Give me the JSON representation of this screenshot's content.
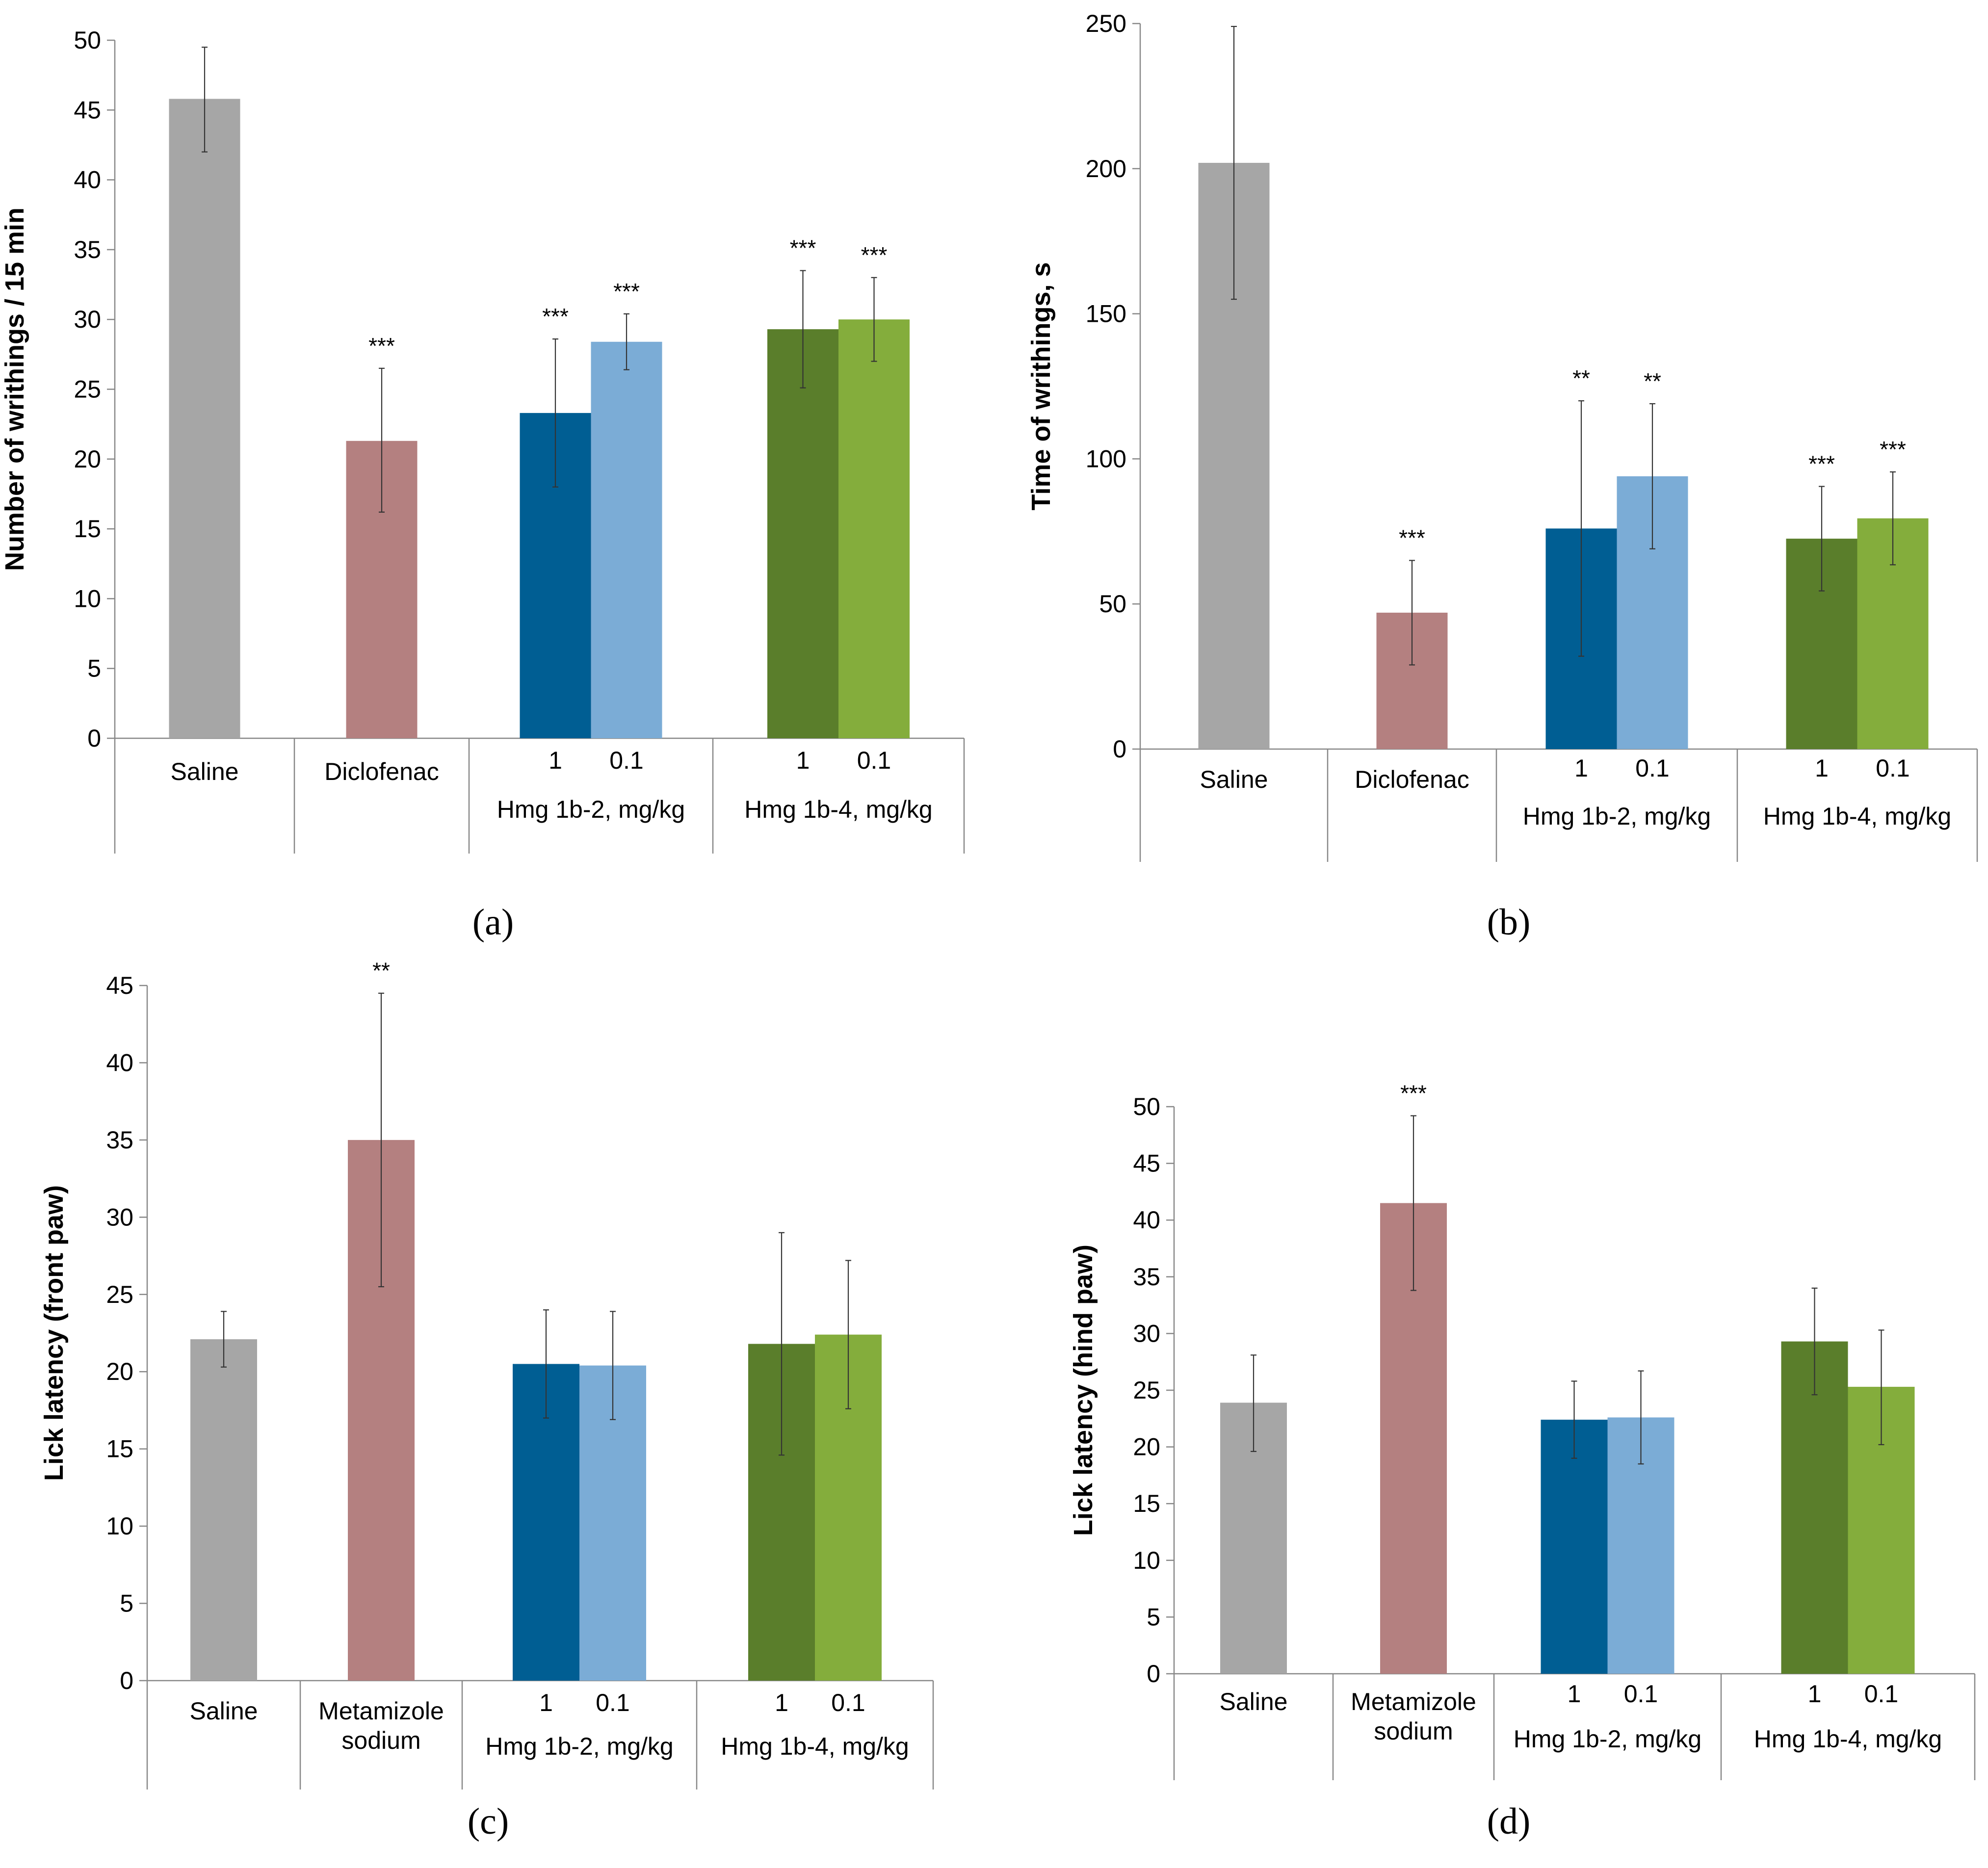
{
  "colors": {
    "saline": "#a6a6a6",
    "reference": "#b48080",
    "hmg2_1": "#005e93",
    "hmg2_01": "#7bacd6",
    "hmg4_1": "#5a7e2b",
    "hmg4_01": "#84ad3c"
  },
  "chart_data": [
    {
      "type": "bar",
      "panel": "(a)",
      "title": "",
      "ylabel": "Number of writhings / 15 min",
      "ylim": [
        0,
        50
      ],
      "yticks": [
        0,
        5,
        10,
        15,
        20,
        25,
        30,
        35,
        40,
        45,
        50
      ],
      "groups": [
        {
          "label": "Saline",
          "sublabel": ""
        },
        {
          "label": "Diclofenac",
          "sublabel": ""
        },
        {
          "label": "Hmg 1b-2,  mg/kg",
          "sublabel": ""
        },
        {
          "label": "Hmg 1b-4, mg/kg",
          "sublabel": ""
        }
      ],
      "bars": [
        {
          "group": 0,
          "dose": "",
          "value": 45.8,
          "err_low": 42.0,
          "err_high": 49.5,
          "sig": "",
          "color_key": "saline"
        },
        {
          "group": 1,
          "dose": "",
          "value": 21.3,
          "err_low": 16.2,
          "err_high": 26.5,
          "sig": "***",
          "color_key": "reference"
        },
        {
          "group": 2,
          "dose": "1",
          "value": 23.3,
          "err_low": 18.0,
          "err_high": 28.6,
          "sig": "***",
          "color_key": "hmg2_1"
        },
        {
          "group": 2,
          "dose": "0.1",
          "value": 28.4,
          "err_low": 26.4,
          "err_high": 30.4,
          "sig": "***",
          "color_key": "hmg2_01"
        },
        {
          "group": 3,
          "dose": "1",
          "value": 29.3,
          "err_low": 25.1,
          "err_high": 33.5,
          "sig": "***",
          "color_key": "hmg4_1"
        },
        {
          "group": 3,
          "dose": "0.1",
          "value": 30.0,
          "err_low": 27.0,
          "err_high": 33.0,
          "sig": "***",
          "color_key": "hmg4_01"
        }
      ]
    },
    {
      "type": "bar",
      "panel": "(b)",
      "title": "",
      "ylabel": "Time of writhings, s",
      "ylim": [
        0,
        250
      ],
      "yticks": [
        0,
        50,
        100,
        150,
        200,
        250
      ],
      "groups": [
        {
          "label": "Saline",
          "sublabel": ""
        },
        {
          "label": "Diclofenac",
          "sublabel": ""
        },
        {
          "label": "Hmg 1b-2,  mg/kg",
          "sublabel": ""
        },
        {
          "label": "Hmg 1b-4, mg/kg",
          "sublabel": ""
        }
      ],
      "bars": [
        {
          "group": 0,
          "dose": "",
          "value": 202,
          "err_low": 155,
          "err_high": 249,
          "sig": "",
          "color_key": "saline"
        },
        {
          "group": 1,
          "dose": "",
          "value": 47,
          "err_low": 29,
          "err_high": 65,
          "sig": "***",
          "color_key": "reference"
        },
        {
          "group": 2,
          "dose": "1",
          "value": 76,
          "err_low": 32,
          "err_high": 120,
          "sig": "**",
          "color_key": "hmg2_1"
        },
        {
          "group": 2,
          "dose": "0.1",
          "value": 94,
          "err_low": 69,
          "err_high": 119,
          "sig": "**",
          "color_key": "hmg2_01"
        },
        {
          "group": 3,
          "dose": "1",
          "value": 72.5,
          "err_low": 54.5,
          "err_high": 90.5,
          "sig": "***",
          "color_key": "hmg4_1"
        },
        {
          "group": 3,
          "dose": "0.1",
          "value": 79.5,
          "err_low": 63.5,
          "err_high": 95.5,
          "sig": "***",
          "color_key": "hmg4_01"
        }
      ]
    },
    {
      "type": "bar",
      "panel": "(c)",
      "title": "",
      "ylabel": "Lick latency (front paw)",
      "ylim": [
        0,
        45
      ],
      "yticks": [
        0,
        5,
        10,
        15,
        20,
        25,
        30,
        35,
        40,
        45
      ],
      "groups": [
        {
          "label": "Saline",
          "sublabel": ""
        },
        {
          "label": "Metamizole",
          "sublabel": "sodium"
        },
        {
          "label": "Hmg 1b-2, mg/kg",
          "sublabel": ""
        },
        {
          "label": "Hmg 1b-4, mg/kg",
          "sublabel": ""
        }
      ],
      "bars": [
        {
          "group": 0,
          "dose": "",
          "value": 22.1,
          "err_low": 20.3,
          "err_high": 23.9,
          "sig": "",
          "color_key": "saline"
        },
        {
          "group": 1,
          "dose": "",
          "value": 35.0,
          "err_low": 25.5,
          "err_high": 44.5,
          "sig": "**",
          "color_key": "reference"
        },
        {
          "group": 2,
          "dose": "1",
          "value": 20.5,
          "err_low": 17.0,
          "err_high": 24.0,
          "sig": "",
          "color_key": "hmg2_1"
        },
        {
          "group": 2,
          "dose": "0.1",
          "value": 20.4,
          "err_low": 16.9,
          "err_high": 23.9,
          "sig": "",
          "color_key": "hmg2_01"
        },
        {
          "group": 3,
          "dose": "1",
          "value": 21.8,
          "err_low": 14.6,
          "err_high": 29.0,
          "sig": "",
          "color_key": "hmg4_1"
        },
        {
          "group": 3,
          "dose": "0.1",
          "value": 22.4,
          "err_low": 17.6,
          "err_high": 27.2,
          "sig": "",
          "color_key": "hmg4_01"
        }
      ]
    },
    {
      "type": "bar",
      "panel": "(d)",
      "title": "",
      "ylabel": "Lick latency (hind paw)",
      "ylim": [
        0,
        50
      ],
      "yticks": [
        0,
        5,
        10,
        15,
        20,
        25,
        30,
        35,
        40,
        45,
        50
      ],
      "groups": [
        {
          "label": "Saline",
          "sublabel": ""
        },
        {
          "label": "Metamizole",
          "sublabel": "sodium"
        },
        {
          "label": "Hmg 1b-2, mg/kg",
          "sublabel": ""
        },
        {
          "label": "Hmg 1b-4, mg/kg",
          "sublabel": ""
        }
      ],
      "bars": [
        {
          "group": 0,
          "dose": "",
          "value": 23.9,
          "err_low": 19.6,
          "err_high": 28.1,
          "sig": "",
          "color_key": "saline"
        },
        {
          "group": 1,
          "dose": "",
          "value": 41.5,
          "err_low": 33.8,
          "err_high": 49.2,
          "sig": "***",
          "color_key": "reference"
        },
        {
          "group": 2,
          "dose": "1",
          "value": 22.4,
          "err_low": 19.0,
          "err_high": 25.8,
          "sig": "",
          "color_key": "hmg2_1"
        },
        {
          "group": 2,
          "dose": "0.1",
          "value": 22.6,
          "err_low": 18.5,
          "err_high": 26.7,
          "sig": "",
          "color_key": "hmg2_01"
        },
        {
          "group": 3,
          "dose": "1",
          "value": 29.3,
          "err_low": 24.6,
          "err_high": 34.0,
          "sig": "",
          "color_key": "hmg4_1"
        },
        {
          "group": 3,
          "dose": "0.1",
          "value": 25.3,
          "err_low": 20.2,
          "err_high": 30.3,
          "sig": "",
          "color_key": "hmg4_01"
        }
      ]
    }
  ]
}
